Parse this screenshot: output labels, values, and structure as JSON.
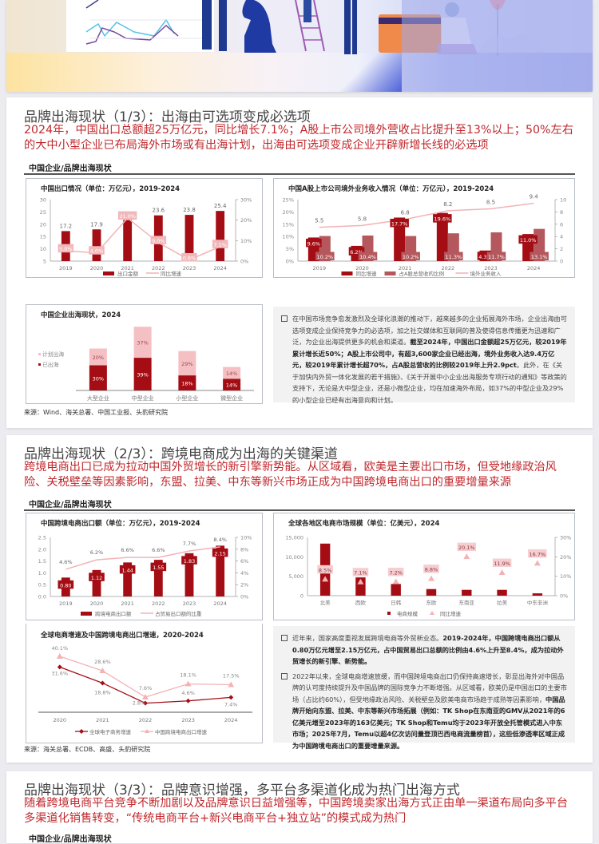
{
  "banner": {
    "description": "decorative business illustration"
  },
  "cards": [
    {
      "title": "品牌出海现状（1/3）：出海由可选项变成必选项",
      "subtitle": "2024年，中国出口总额超25万亿元，同比增长7.1%；A股上市公司境外营收占比提升至13%以上；50%左右的大中小型企业已布局海外市场或有出海计划，出海由可选项变成企业开辟新增长线的必选项",
      "section_label": "中国企业/品牌出海现状",
      "source": "来源：Wind、海关总署、中国工业报、头豹研究院",
      "text_bullets": [
        {
          "plain1": "在中国市场竞争愈发激烈及全球化浪潮的推动下，越来越多的企业拓展海外市场，企业出海由可选项变成企业保持竞争力的必选项，加之社交媒体和互联网的普及使得信息传播更为迅速和广泛，为企业出海提供更多的机会和渠道。",
          "bold": "截至2024年，中国出口金额超25万亿元，较2019年累计增长近50%；A股上市公司中，有超3,600家企业已经出海，境外业务收入达9.4万亿元，较2019年累计增长超70%，占A股总营收的比例较2019年上升2.9pct",
          "plain2": "。此外，在《关于加快内外贸一体化发展的若干措施》、《关于开展中小企业出海服务专项行动的通知》等政策的支持下，无论是大中型企业，还是小微型企业，均在加速海外布局，如37%的中型企业及29%的小型企业已经有出海意向和计划。"
        }
      ]
    },
    {
      "title": "品牌出海现状（2/3）：跨境电商成为出海的关键渠道",
      "subtitle": "跨境电商出口已成为拉动中国外贸增长的新引擎新势能。从区域看，欧美是主要出口市场，但受地缘政治风险、关税壁垒等因素影响，东盟、拉美、中东等新兴市场正成为中国跨境电商出口的重要增量来源",
      "section_label": "中国企业/品牌出海现状",
      "source": "来源：海关总署、ECDB、高盛、头豹研究院",
      "text_bullets": [
        {
          "plain1": "近年来，国家高度重视发展跨境电商等外贸新业态。",
          "bold": "2019-2024年，中国跨境电商出口额从0.80万亿元增至2.15万亿元，占中国贸易出口总额的比例由4.6%上升至8.4%，成为拉动外贸增长的新引擎、新势能。",
          "plain2": ""
        },
        {
          "plain1": "2022年以来，全球电商增速放缓，而中国跨境电商出口仍保持高速增长，彰显出海外对中国品牌的认可度持续提升及中国品牌的国际竞争力不断增强。从区域看，欧美仍是中国出口的主要市场（占比约60%），但受地缘政治风险、关税壁垒及欧美电商市场趋于成熟等因素影响，",
          "bold": "中国品牌开始向东盟、拉美、中东等新兴市场拓展（例如：TK Shop在东南亚的GMV从2021年的6亿美元增至2023年的163亿美元；TK Shop和Temu均于2023年开放全托管模式进入中东市场；2025年7月，Temu以超4亿次访问量登顶巴西电商流量榜首），这些低渗透率区域正成为中国跨境电商出口的重要增量来源。",
          "plain2": ""
        }
      ]
    },
    {
      "title": "品牌出海现状（3/3）：品牌意识增强，多平台多渠道化成为热门出海方式",
      "subtitle": "随着跨境电商平台竞争不断加剧以及品牌意识日益增强等，中国跨境卖家出海方式正由单一渠道布局向多平台多渠道化销售转变，“传统电商平台+新兴电商平台+独立站”的模式成为热门",
      "section_label": "中国企业/品牌出海现状"
    }
  ],
  "chart_data": [
    {
      "id": "china-exports",
      "type": "bar",
      "title": "中国出口情况（单位：万亿元），2019-2024",
      "categories": [
        "2019",
        "2020",
        "2021",
        "2022",
        "2023",
        "2024"
      ],
      "series": [
        {
          "name": "出口金额",
          "type": "bar",
          "axis": "left",
          "values": [
            17.2,
            17.9,
            21.7,
            23.6,
            23.8,
            25.4
          ],
          "color": "#a50d14"
        },
        {
          "name": "同比增速",
          "type": "line",
          "axis": "right",
          "values": [
            5.0,
            4.0,
            21.0,
            9.0,
            0.6,
            7.1
          ],
          "labels": [
            "5.0%",
            "4.0%",
            "21.0%",
            "9.0%",
            "0.6%",
            "7.1%"
          ],
          "color": "#f2b3b6"
        }
      ],
      "left_axis": {
        "min": 5,
        "max": 30,
        "ticks": [
          "5",
          "10",
          "15",
          "20",
          "25",
          "30"
        ]
      },
      "right_axis": {
        "min": 0,
        "max": 30,
        "ticks": [
          "0%",
          "10%",
          "20%",
          "30%"
        ]
      },
      "legend": [
        "出口金额",
        "同比增速"
      ],
      "legend_position": "bottom"
    },
    {
      "id": "a-share-overseas",
      "type": "bar",
      "title": "中国A股上市公司境外业务收入情况（单位：万亿元），2019-2024",
      "categories": [
        "2019",
        "2020",
        "2021",
        "2022",
        "2023",
        "2024"
      ],
      "series": [
        {
          "name": "同比增速",
          "type": "bar",
          "axis": "left",
          "values": [
            9.6,
            6.2,
            17.7,
            19.6,
            4.3,
            11.0
          ],
          "labels": [
            "9.6%",
            "6.2%",
            "17.7%",
            "19.6%",
            "4.3%",
            "11.0%"
          ],
          "color": "#a50d14"
        },
        {
          "name": "占A股总营收的比例",
          "type": "bar",
          "axis": "left",
          "values": [
            10.2,
            10.4,
            10.2,
            11.3,
            11.7,
            13.1
          ],
          "labels": [
            "10.2%",
            "10.4%",
            "10.2%",
            "11.3%",
            "11.7%",
            "13.1%"
          ],
          "color": "#b5585d"
        },
        {
          "name": "境外业务收入",
          "type": "line",
          "axis": "right",
          "values": [
            5.5,
            5.8,
            6.8,
            8.2,
            8.5,
            9.4
          ],
          "labels": [
            "5.5",
            "5.8",
            "6.8",
            "8.2",
            "8.5",
            "9.4"
          ],
          "color": "#f2b3b6"
        }
      ],
      "left_axis": {
        "min": 0,
        "max": 25,
        "ticks": [
          "0%",
          "5%",
          "10%",
          "15%",
          "20%",
          "25%"
        ]
      },
      "right_axis": {
        "min": 0,
        "max": 10,
        "ticks": [
          "0",
          "2",
          "4",
          "6",
          "8",
          "10"
        ]
      },
      "legend": [
        "同比增速",
        "占A股总营收的比例",
        "境外业务收入"
      ],
      "legend_position": "bottom"
    },
    {
      "id": "enterprise-overseas",
      "type": "bar",
      "stacked": true,
      "title": "中国企业出海现状，2024",
      "categories": [
        "大型企业",
        "中型企业",
        "小型企业",
        "微型企业"
      ],
      "series": [
        {
          "name": "已出海",
          "values": [
            30,
            39,
            18,
            14
          ],
          "labels": [
            "30%",
            "39%",
            "18%",
            "14%"
          ],
          "color": "#a50d14"
        },
        {
          "name": "计划出海",
          "values": [
            20,
            37,
            29,
            14
          ],
          "labels": [
            "20%",
            "37%",
            "29%",
            "14%"
          ],
          "color": "#f4c0c3"
        }
      ],
      "legend": [
        "计划出海",
        "已出海"
      ],
      "legend_position": "left"
    },
    {
      "id": "cross-border-ecom-exports",
      "type": "bar",
      "title": "中国跨境电商出口额（单位：万亿元），2019-2024",
      "categories": [
        "2019",
        "2020",
        "2021",
        "2022",
        "2023",
        "2024"
      ],
      "series": [
        {
          "name": "跨境电商出口额",
          "type": "bar",
          "axis": "left",
          "values": [
            0.8,
            1.12,
            1.44,
            1.55,
            1.83,
            2.15
          ],
          "labels": [
            "0.80",
            "1.12",
            "1.44",
            "1.55",
            "1.83",
            "2.15"
          ],
          "color": "#a50d14"
        },
        {
          "name": "占贸易出口额的比重",
          "type": "line",
          "axis": "right",
          "values": [
            4.6,
            6.2,
            6.6,
            6.6,
            7.7,
            8.4
          ],
          "labels": [
            "4.6%",
            "6.2%",
            "6.6%",
            "6.6%",
            "7.7%",
            "8.4%"
          ],
          "color": "#f2b3b6"
        }
      ],
      "left_axis": {
        "min": 0,
        "max": 2.5,
        "ticks": [
          "0.0",
          "0.5",
          "1.0",
          "1.5",
          "2.0",
          "2.5"
        ]
      },
      "right_axis": {
        "min": 0,
        "max": 10,
        "ticks": [
          "0%",
          "2%",
          "4%",
          "6%",
          "8%",
          "10%"
        ]
      },
      "legend": [
        "跨境电商出口额",
        "占贸易出口额的比重"
      ],
      "legend_position": "bottom"
    },
    {
      "id": "regional-ecom-market",
      "type": "bar",
      "title": "全球各地区电商市场规模（单位：亿美元），2024",
      "categories": [
        "北美",
        "西欧",
        "日韩",
        "东欧",
        "东南亚",
        "拉美",
        "中东非洲"
      ],
      "series": [
        {
          "name": "电商规模",
          "type": "bar",
          "axis": "left",
          "values": [
            13400,
            4700,
            3000,
            1700,
            1500,
            1500,
            600
          ],
          "color": "#a50d14"
        },
        {
          "name": "同比增速",
          "type": "scatter",
          "marker": "triangle",
          "axis": "right",
          "values": [
            8.5,
            7.1,
            7.2,
            8.8,
            20.1,
            11.9,
            16.7
          ],
          "labels": [
            "8.5%",
            "7.1%",
            "7.2%",
            "8.8%",
            "20.1%",
            "11.9%",
            "16.7%"
          ],
          "color": "#f2b3b6"
        }
      ],
      "left_axis": {
        "min": 0,
        "max": 15000,
        "ticks": [
          "0",
          "5,000",
          "10,000",
          "15,000"
        ]
      },
      "right_axis": {
        "min": 0,
        "max": 30,
        "ticks": [
          "0%",
          "10%",
          "20%",
          "30%"
        ]
      },
      "legend": [
        "电商规模",
        "同比增速"
      ],
      "legend_position": "bottom"
    },
    {
      "id": "growth-comparison",
      "type": "line",
      "title": "全球电商增速及中国跨境电商出口增速，2020-2024",
      "categories": [
        "2020",
        "2021",
        "2022",
        "2023",
        "2024"
      ],
      "series": [
        {
          "name": "全球电子商务增速",
          "values": [
            31.6,
            18.8,
            2.8,
            4.6,
            7.4
          ],
          "labels": [
            "31.6%",
            "18.8%",
            "2.8%",
            "4.6%",
            "7.4%"
          ],
          "marker": "diamond",
          "color": "#a50d14"
        },
        {
          "name": "中国跨境电商出口增速",
          "values": [
            40.1,
            28.6,
            7.6,
            18.1,
            17.5
          ],
          "labels": [
            "40.1%",
            "28.6%",
            "7.6%",
            "18.1%",
            "17.5%"
          ],
          "marker": "triangle",
          "color": "#f2b3b6"
        }
      ],
      "legend": [
        "全球电子商务增速",
        "中国跨境电商出口增速"
      ],
      "legend_position": "bottom",
      "grid": false
    }
  ]
}
